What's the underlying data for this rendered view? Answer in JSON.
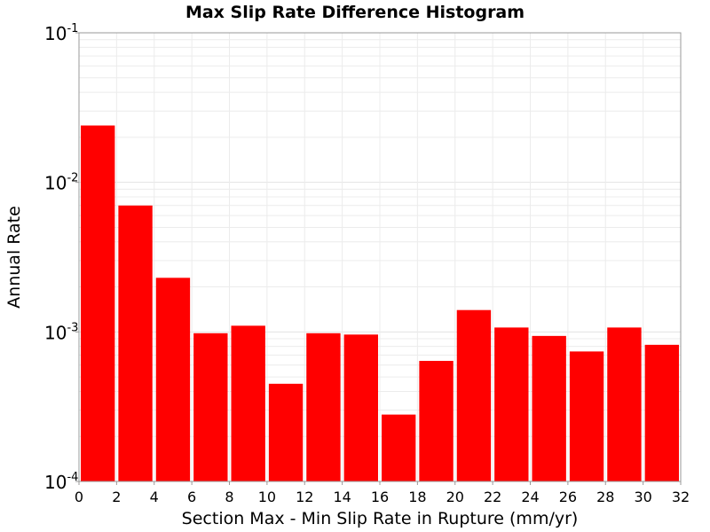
{
  "chart_data": {
    "type": "bar",
    "title": "Max Slip Rate Difference Histogram",
    "xlabel": "Section Max - Min Slip Rate in Rupture (mm/yr)",
    "ylabel": "Annual Rate",
    "xlim": [
      0,
      32
    ],
    "ylim": [
      0.0001,
      0.1
    ],
    "yscale": "log",
    "grid": true,
    "x_ticks": [
      "0",
      "2",
      "4",
      "6",
      "8",
      "10",
      "12",
      "14",
      "16",
      "18",
      "20",
      "22",
      "24",
      "26",
      "28",
      "30",
      "32"
    ],
    "y_ticks": [
      {
        "base": "10",
        "exp": "-4"
      },
      {
        "base": "10",
        "exp": "-3"
      },
      {
        "base": "10",
        "exp": "-2"
      },
      {
        "base": "10",
        "exp": "-1"
      }
    ],
    "bin_width": 2,
    "bin_starts": [
      0,
      2,
      4,
      6,
      8,
      10,
      12,
      14,
      16,
      18,
      20,
      22,
      24,
      26,
      28,
      30
    ],
    "values": [
      0.024,
      0.007,
      0.0023,
      0.00098,
      0.0011,
      0.00045,
      0.00098,
      0.00096,
      0.00028,
      0.00064,
      0.0014,
      0.00107,
      0.00094,
      0.00074,
      0.00107,
      0.00082
    ],
    "bar_color": "#ff0000"
  }
}
